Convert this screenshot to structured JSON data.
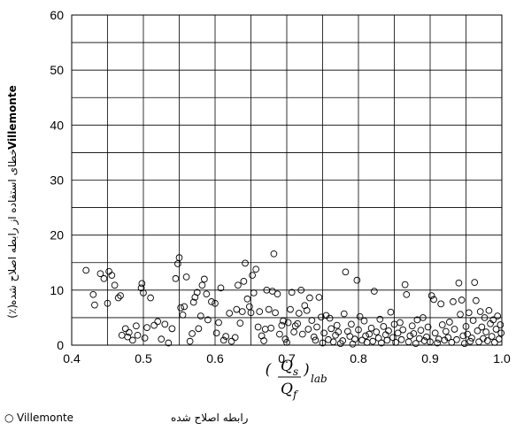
{
  "chart_data": {
    "type": "scatter",
    "xlim": [
      0.4,
      1.0
    ],
    "ylim": [
      0,
      60
    ],
    "x_ticks": [
      "0.4",
      "0.5",
      "0.6",
      "0.7",
      "0.8",
      "0.9",
      "1.0"
    ],
    "y_ticks": [
      "0",
      "10",
      "20",
      "30",
      "40",
      "50",
      "60"
    ],
    "x_minor_step": 0.05,
    "y_minor_step": 5,
    "grid": true,
    "ylabel_bold": "Villemonte",
    "ylabel_text": "خطای استفاده از رابطه اصلاح شده",
    "ylabel_unit": "(٪)",
    "xlabel": {
      "numerator": "Q",
      "numerator_sub": "s",
      "denominator": "Q",
      "denominator_sub": "f",
      "subscript": "lab"
    },
    "legend": {
      "marker": "○",
      "name": "Villemonte",
      "text": "رابطه اصلاح شده",
      "placement": "bottom-left"
    },
    "marker": {
      "shape": "circle",
      "fill": "none",
      "stroke": "#000000"
    },
    "points": [
      [
        0.42,
        13.6
      ],
      [
        0.43,
        9.2
      ],
      [
        0.432,
        7.3
      ],
      [
        0.44,
        13.0
      ],
      [
        0.445,
        12.1
      ],
      [
        0.45,
        7.6
      ],
      [
        0.452,
        13.4
      ],
      [
        0.456,
        12.7
      ],
      [
        0.46,
        10.9
      ],
      [
        0.465,
        8.6
      ],
      [
        0.468,
        9.0
      ],
      [
        0.47,
        1.8
      ],
      [
        0.475,
        3.0
      ],
      [
        0.478,
        1.5
      ],
      [
        0.48,
        2.3
      ],
      [
        0.485,
        0.9
      ],
      [
        0.49,
        3.5
      ],
      [
        0.492,
        1.8
      ],
      [
        0.497,
        10.4
      ],
      [
        0.498,
        11.2
      ],
      [
        0.5,
        9.5
      ],
      [
        0.502,
        1.3
      ],
      [
        0.505,
        3.2
      ],
      [
        0.51,
        8.6
      ],
      [
        0.515,
        3.6
      ],
      [
        0.52,
        4.3
      ],
      [
        0.525,
        1.1
      ],
      [
        0.53,
        3.8
      ],
      [
        0.535,
        0.4
      ],
      [
        0.54,
        3.0
      ],
      [
        0.545,
        12.1
      ],
      [
        0.548,
        14.8
      ],
      [
        0.55,
        15.9
      ],
      [
        0.552,
        6.8
      ],
      [
        0.555,
        5.5
      ],
      [
        0.557,
        7.0
      ],
      [
        0.56,
        12.4
      ],
      [
        0.565,
        0.7
      ],
      [
        0.568,
        2.1
      ],
      [
        0.57,
        7.8
      ],
      [
        0.572,
        8.7
      ],
      [
        0.575,
        9.6
      ],
      [
        0.577,
        3.0
      ],
      [
        0.58,
        5.3
      ],
      [
        0.582,
        10.9
      ],
      [
        0.585,
        12.0
      ],
      [
        0.588,
        9.3
      ],
      [
        0.59,
        4.6
      ],
      [
        0.595,
        7.9
      ],
      [
        0.6,
        7.6
      ],
      [
        0.602,
        2.2
      ],
      [
        0.605,
        4.1
      ],
      [
        0.608,
        10.4
      ],
      [
        0.612,
        0.9
      ],
      [
        0.615,
        1.6
      ],
      [
        0.62,
        5.8
      ],
      [
        0.623,
        0.7
      ],
      [
        0.628,
        1.4
      ],
      [
        0.63,
        6.5
      ],
      [
        0.632,
        10.9
      ],
      [
        0.635,
        4.0
      ],
      [
        0.638,
        6.1
      ],
      [
        0.64,
        11.6
      ],
      [
        0.642,
        14.9
      ],
      [
        0.645,
        8.4
      ],
      [
        0.648,
        7.0
      ],
      [
        0.65,
        5.9
      ],
      [
        0.652,
        12.7
      ],
      [
        0.654,
        9.5
      ],
      [
        0.657,
        13.8
      ],
      [
        0.66,
        3.3
      ],
      [
        0.662,
        6.1
      ],
      [
        0.665,
        1.7
      ],
      [
        0.668,
        0.8
      ],
      [
        0.67,
        2.9
      ],
      [
        0.672,
        10.0
      ],
      [
        0.675,
        6.5
      ],
      [
        0.678,
        3.1
      ],
      [
        0.68,
        9.8
      ],
      [
        0.682,
        16.6
      ],
      [
        0.684,
        5.9
      ],
      [
        0.687,
        9.3
      ],
      [
        0.69,
        2.0
      ],
      [
        0.693,
        3.6
      ],
      [
        0.695,
        4.4
      ],
      [
        0.698,
        1.1
      ],
      [
        0.7,
        0.5
      ],
      [
        0.702,
        4.1
      ],
      [
        0.705,
        6.5
      ],
      [
        0.707,
        9.6
      ],
      [
        0.71,
        2.4
      ],
      [
        0.712,
        3.5
      ],
      [
        0.715,
        3.9
      ],
      [
        0.717,
        5.8
      ],
      [
        0.72,
        10.0
      ],
      [
        0.722,
        2.0
      ],
      [
        0.725,
        7.2
      ],
      [
        0.728,
        6.3
      ],
      [
        0.73,
        2.9
      ],
      [
        0.732,
        8.6
      ],
      [
        0.735,
        4.5
      ],
      [
        0.738,
        1.5
      ],
      [
        0.74,
        0.9
      ],
      [
        0.742,
        3.3
      ],
      [
        0.745,
        8.7
      ],
      [
        0.748,
        5.1
      ],
      [
        0.75,
        0.4
      ],
      [
        0.752,
        2.2
      ],
      [
        0.755,
        5.4
      ],
      [
        0.758,
        1.0
      ],
      [
        0.76,
        4.9
      ],
      [
        0.762,
        3.0
      ],
      [
        0.765,
        0.6
      ],
      [
        0.768,
        1.8
      ],
      [
        0.77,
        3.6
      ],
      [
        0.772,
        2.4
      ],
      [
        0.775,
        0.3
      ],
      [
        0.778,
        0.8
      ],
      [
        0.78,
        5.7
      ],
      [
        0.782,
        13.3
      ],
      [
        0.785,
        2.5
      ],
      [
        0.788,
        1.6
      ],
      [
        0.79,
        3.8
      ],
      [
        0.792,
        0.2
      ],
      [
        0.795,
        1.1
      ],
      [
        0.798,
        11.8
      ],
      [
        0.8,
        2.8
      ],
      [
        0.802,
        5.2
      ],
      [
        0.805,
        0.9
      ],
      [
        0.808,
        4.4
      ],
      [
        0.81,
        1.7
      ],
      [
        0.812,
        0.5
      ],
      [
        0.815,
        2.0
      ],
      [
        0.818,
        3.1
      ],
      [
        0.82,
        0.7
      ],
      [
        0.822,
        9.8
      ],
      [
        0.825,
        2.4
      ],
      [
        0.828,
        1.3
      ],
      [
        0.83,
        4.7
      ],
      [
        0.832,
        0.4
      ],
      [
        0.835,
        3.4
      ],
      [
        0.838,
        1.9
      ],
      [
        0.84,
        0.9
      ],
      [
        0.842,
        2.6
      ],
      [
        0.845,
        6.0
      ],
      [
        0.848,
        1.4
      ],
      [
        0.85,
        3.8
      ],
      [
        0.852,
        0.5
      ],
      [
        0.855,
        2.2
      ],
      [
        0.858,
        4.1
      ],
      [
        0.86,
        1.0
      ],
      [
        0.862,
        2.8
      ],
      [
        0.865,
        11.0
      ],
      [
        0.867,
        9.2
      ],
      [
        0.87,
        0.6
      ],
      [
        0.872,
        1.7
      ],
      [
        0.875,
        3.5
      ],
      [
        0.877,
        2.1
      ],
      [
        0.88,
        0.3
      ],
      [
        0.882,
        4.6
      ],
      [
        0.885,
        1.2
      ],
      [
        0.887,
        2.7
      ],
      [
        0.89,
        5.0
      ],
      [
        0.892,
        0.8
      ],
      [
        0.895,
        1.5
      ],
      [
        0.897,
        3.3
      ],
      [
        0.9,
        0.6
      ],
      [
        0.902,
        9.0
      ],
      [
        0.905,
        8.3
      ],
      [
        0.907,
        2.2
      ],
      [
        0.91,
        0.4
      ],
      [
        0.912,
        1.1
      ],
      [
        0.915,
        7.5
      ],
      [
        0.917,
        3.7
      ],
      [
        0.92,
        0.9
      ],
      [
        0.922,
        2.5
      ],
      [
        0.925,
        1.4
      ],
      [
        0.927,
        4.2
      ],
      [
        0.93,
        0.5
      ],
      [
        0.932,
        7.9
      ],
      [
        0.934,
        2.9
      ],
      [
        0.937,
        1.0
      ],
      [
        0.94,
        11.3
      ],
      [
        0.942,
        5.6
      ],
      [
        0.944,
        8.2
      ],
      [
        0.946,
        1.7
      ],
      [
        0.948,
        0.3
      ],
      [
        0.95,
        3.4
      ],
      [
        0.952,
        2.0
      ],
      [
        0.954,
        5.9
      ],
      [
        0.956,
        0.7
      ],
      [
        0.958,
        1.3
      ],
      [
        0.96,
        4.5
      ],
      [
        0.962,
        11.4
      ],
      [
        0.964,
        8.1
      ],
      [
        0.966,
        2.6
      ],
      [
        0.968,
        0.6
      ],
      [
        0.97,
        6.1
      ],
      [
        0.972,
        3.3
      ],
      [
        0.974,
        1.2
      ],
      [
        0.976,
        5.0
      ],
      [
        0.978,
        2.4
      ],
      [
        0.98,
        0.8
      ],
      [
        0.982,
        6.3
      ],
      [
        0.984,
        3.9
      ],
      [
        0.986,
        1.6
      ],
      [
        0.988,
        4.6
      ],
      [
        0.99,
        0.5
      ],
      [
        0.992,
        2.9
      ],
      [
        0.994,
        5.3
      ],
      [
        0.996,
        1.1
      ],
      [
        0.998,
        3.7
      ],
      [
        0.999,
        2.2
      ]
    ]
  }
}
